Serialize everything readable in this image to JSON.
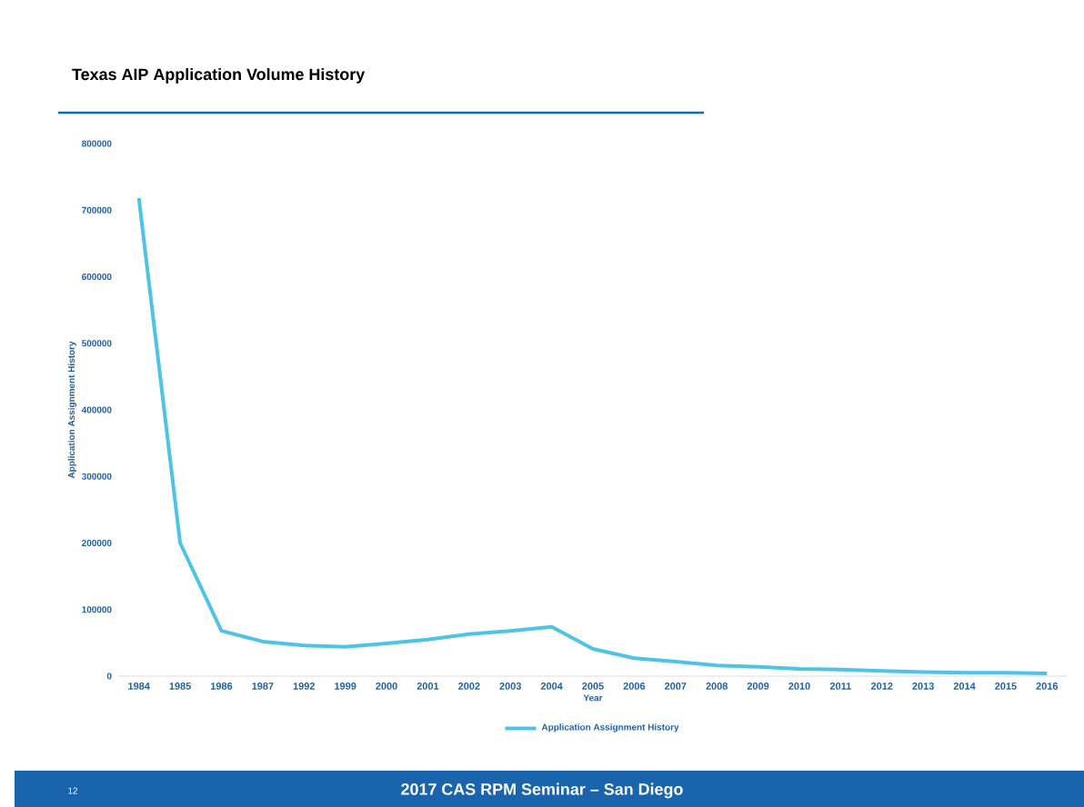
{
  "chart_data": {
    "type": "line",
    "title": "Texas AIP Application Volume History",
    "xlabel": "Year",
    "ylabel": "Application Assignment History",
    "categories": [
      "1984",
      "1985",
      "1986",
      "1987",
      "1992",
      "1999",
      "2000",
      "2001",
      "2002",
      "2003",
      "2004",
      "2005",
      "2006",
      "2007",
      "2008",
      "2009",
      "2010",
      "2011",
      "2012",
      "2013",
      "2014",
      "2015",
      "2016"
    ],
    "series": [
      {
        "name": "Application Assignment History",
        "color": "#4fc3e6",
        "values": [
          718000,
          200000,
          68000,
          52000,
          46000,
          44000,
          49000,
          55000,
          63000,
          68000,
          74000,
          41000,
          27000,
          22000,
          16000,
          14000,
          11000,
          10000,
          8000,
          6000,
          5000,
          5000,
          4000
        ]
      }
    ],
    "ylim": [
      0,
      800000
    ],
    "yticks": [
      0,
      100000,
      200000,
      300000,
      400000,
      500000,
      600000,
      700000,
      800000
    ],
    "legend": "bottom",
    "grid": false,
    "marker": "none",
    "line_style": "solid",
    "annotations": [
      "12",
      "2017 CAS RPM Seminar – San Diego"
    ]
  }
}
